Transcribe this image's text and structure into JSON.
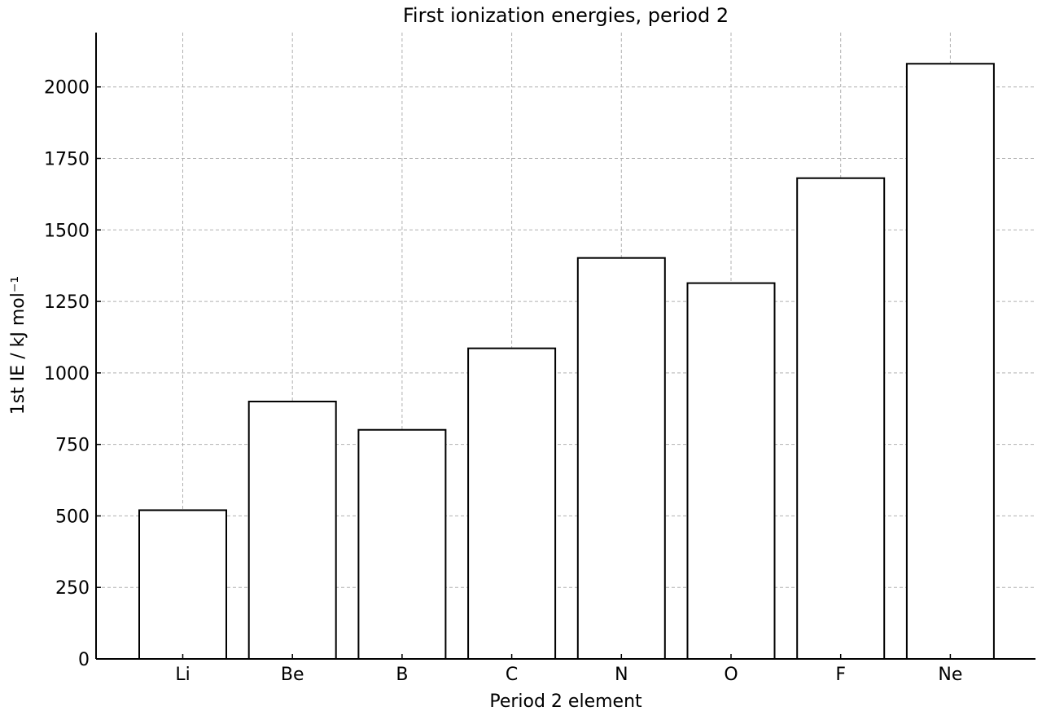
{
  "chart_data": {
    "type": "bar",
    "title": "First ionization energies, period 2",
    "xlabel": "Period 2 element",
    "ylabel": "1st IE / kJ mol⁻¹",
    "categories": [
      "Li",
      "Be",
      "B",
      "C",
      "N",
      "O",
      "F",
      "Ne"
    ],
    "values": [
      520,
      900,
      801,
      1086,
      1402,
      1314,
      1681,
      2081
    ],
    "ylim": [
      0,
      2190
    ],
    "yticks": [
      0,
      250,
      500,
      750,
      1000,
      1250,
      1500,
      1750,
      2000
    ],
    "grid": true,
    "bar_fill": "#ffffff",
    "bar_edge_color": "#000000",
    "grid_color": "#b0b0b0"
  }
}
